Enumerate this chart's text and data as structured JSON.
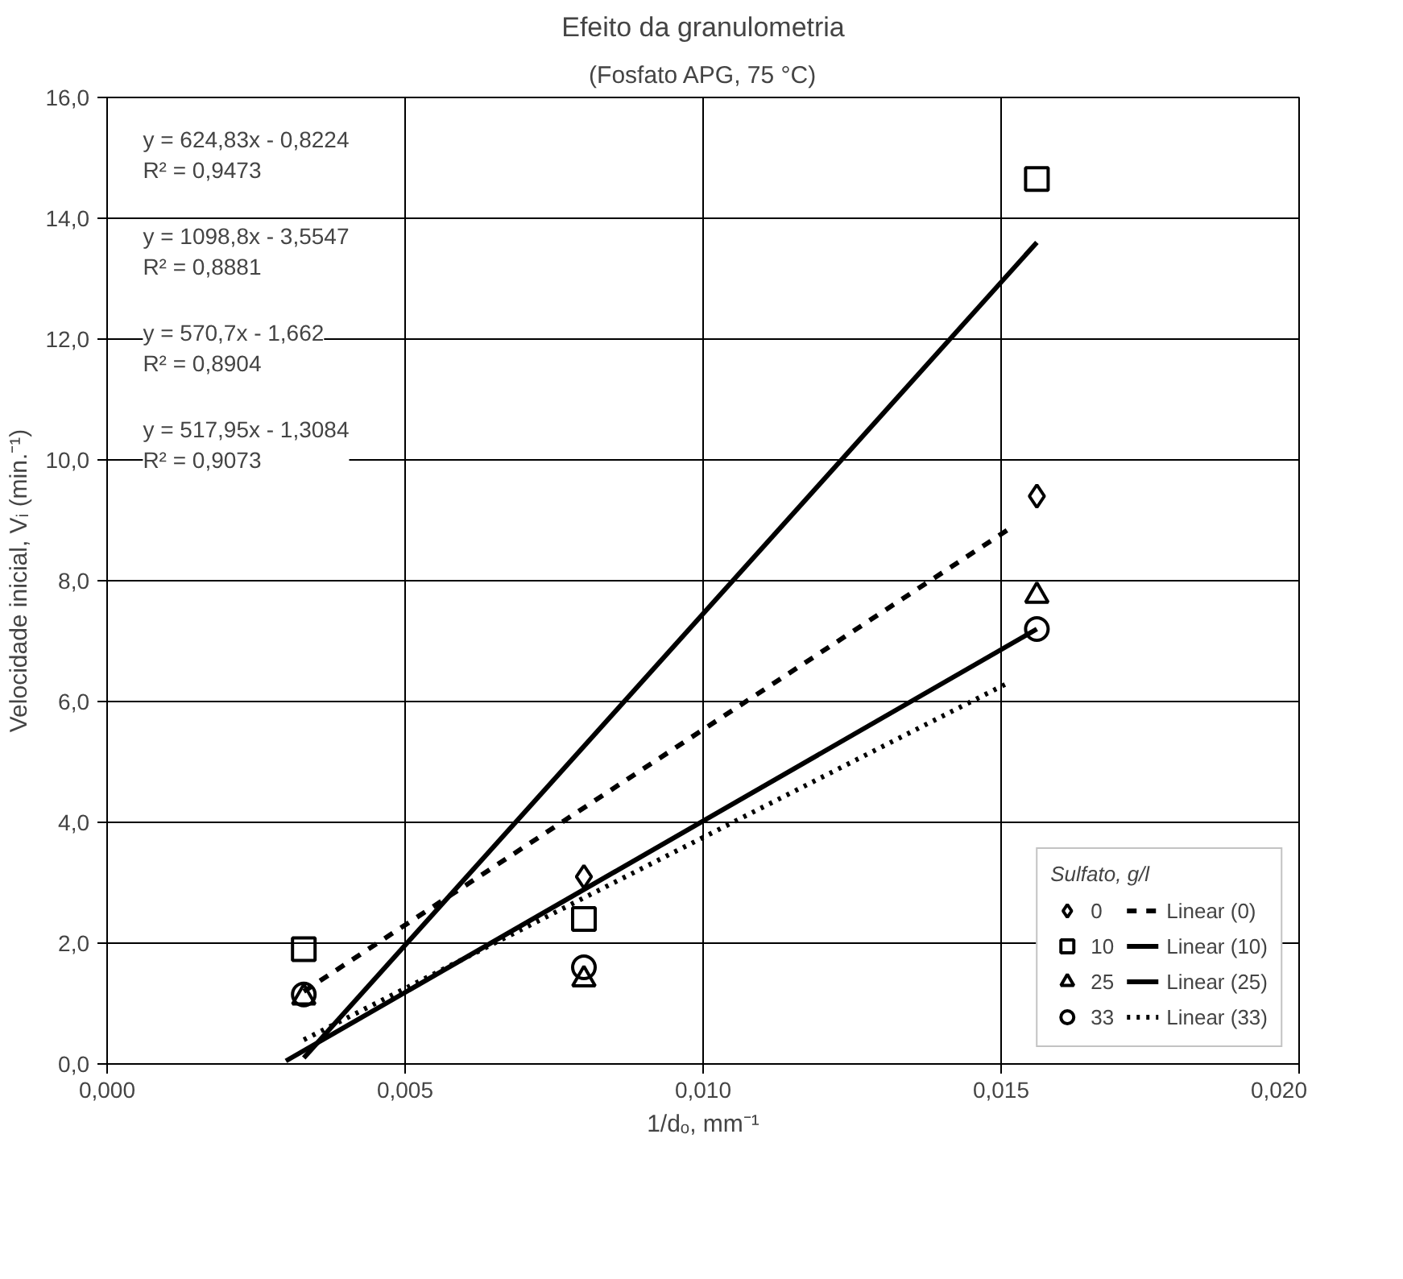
{
  "chart_data": {
    "type": "scatter",
    "title": "Efeito da granulometria",
    "subtitle": "(Fosfato APG, 75 °C)",
    "xlabel": "1/dₒ, mm⁻¹",
    "ylabel": "Velocidade inicial, Vᵢ (min.⁻¹)",
    "legend_title": "Sulfato, g/l",
    "x": [
      0.0033,
      0.008,
      0.0156
    ],
    "series": [
      {
        "name": "0",
        "color": "#000000",
        "marker": "diamond",
        "values": [
          null,
          3.1,
          9.4
        ]
      },
      {
        "name": "10",
        "color": "#000000",
        "marker": "square",
        "values": [
          1.9,
          2.4,
          14.65
        ]
      },
      {
        "name": "25",
        "color": "#000000",
        "marker": "triangle",
        "values": [
          1.1,
          1.4,
          7.75
        ]
      },
      {
        "name": "33",
        "color": "#000000",
        "marker": "circle",
        "values": [
          1.15,
          1.6,
          7.2
        ]
      },
      {
        "name": "Linear (0)",
        "type": "line",
        "color": "#000000",
        "marker": "none",
        "line_style": "dashed",
        "x": [
          0.0033,
          0.0152
        ],
        "values": [
          1.2,
          8.9
        ]
      },
      {
        "name": "Linear (10)",
        "type": "line",
        "color": "#000000",
        "marker": "none",
        "line_style": "solid",
        "x": [
          0.0033,
          0.0156
        ],
        "values": [
          0.1,
          13.6
        ]
      },
      {
        "name": "Linear (25)",
        "type": "line",
        "color": "#000000",
        "marker": "none",
        "line_style": "solid",
        "x": [
          0.003,
          0.0156
        ],
        "values": [
          0.05,
          7.2
        ]
      },
      {
        "name": "Linear (33)",
        "type": "line",
        "color": "#000000",
        "marker": "none",
        "line_style": "dotted",
        "x": [
          0.0033,
          0.0151
        ],
        "values": [
          0.4,
          6.3
        ]
      }
    ],
    "annotations": [
      "y = 624,83x - 0,8224\nR² = 0,9473",
      "y = 1098,8x - 3,5547\nR² = 0,8881",
      "y = 570,7x - 1,662\nR² = 0,8904",
      "y = 517,95x - 1,3084\nR² = 0,9073"
    ],
    "xlim": [
      0,
      0.02
    ],
    "xticks": [
      {
        "value": 0,
        "label": "0,000"
      },
      {
        "value": 0.005,
        "label": "0,005"
      },
      {
        "value": 0.01,
        "label": "0,010"
      },
      {
        "value": 0.015,
        "label": "0,015"
      },
      {
        "value": 0.02,
        "label": "0,020"
      }
    ],
    "ylim": [
      0,
      16
    ],
    "yticks": [
      {
        "value": 0,
        "label": "0,0"
      },
      {
        "value": 2,
        "label": "2,0"
      },
      {
        "value": 4,
        "label": "4,0"
      },
      {
        "value": 6,
        "label": "6,0"
      },
      {
        "value": 8,
        "label": "8,0"
      },
      {
        "value": 10,
        "label": "10,0"
      },
      {
        "value": 12,
        "label": "12,0"
      },
      {
        "value": 14,
        "label": "14,0"
      },
      {
        "value": 16,
        "label": "16,0"
      }
    ],
    "grid": true,
    "legend": "bottom right"
  }
}
